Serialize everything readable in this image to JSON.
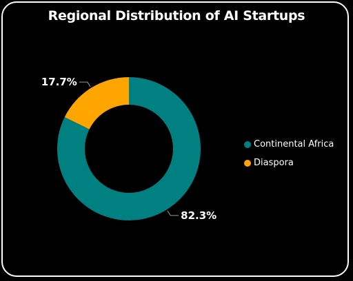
{
  "chart_data": {
    "type": "pie",
    "title": "Regional Distribution of AI Startups",
    "categories": [
      "Continental Africa",
      "Diaspora"
    ],
    "values": [
      82.3,
      17.7
    ],
    "labels": [
      "82.3%",
      "17.7%"
    ],
    "colors": [
      "#008080",
      "#FFA500"
    ],
    "donut": true,
    "legend_position": "right"
  }
}
